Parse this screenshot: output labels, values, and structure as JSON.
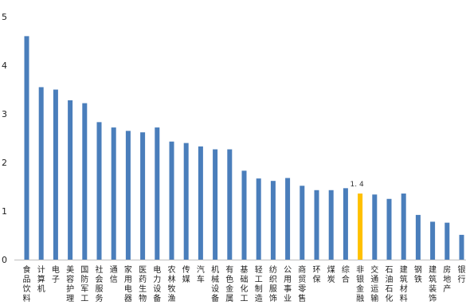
{
  "chart_data": {
    "type": "bar",
    "title": "",
    "xlabel": "",
    "ylabel": "",
    "ylim": [
      0,
      5
    ],
    "yticks": [
      0,
      1,
      2,
      3,
      4,
      5
    ],
    "grid": false,
    "legend": "none",
    "bar_color": "#4a7ebb",
    "highlight_color": "#ffc000",
    "highlight_category": "非银金融",
    "annotations": [
      {
        "category": "非银金融",
        "text": "1. 4"
      }
    ],
    "categories": [
      "食品饮料",
      "计算机",
      "电子",
      "美容护理",
      "国防军工",
      "社会服务",
      "通信",
      "家用电器",
      "医药生物",
      "电力设备",
      "农林牧渔",
      "传媒",
      "汽车",
      "机械设备",
      "有色金属",
      "基础化工",
      "轻工制造",
      "纺织服饰",
      "公用事业",
      "商贸零售",
      "环保",
      "煤炭",
      "综合",
      "非银金融",
      "交通运输",
      "石油石化",
      "建筑材料",
      "钢铁",
      "建筑装饰",
      "房地产",
      "银行"
    ],
    "values": [
      4.6,
      3.55,
      3.5,
      3.28,
      3.22,
      2.83,
      2.72,
      2.65,
      2.62,
      2.72,
      2.43,
      2.4,
      2.33,
      2.27,
      2.27,
      1.83,
      1.67,
      1.62,
      1.68,
      1.52,
      1.43,
      1.43,
      1.47,
      1.36,
      1.34,
      1.25,
      1.36,
      0.92,
      0.78,
      0.76,
      0.51
    ]
  }
}
